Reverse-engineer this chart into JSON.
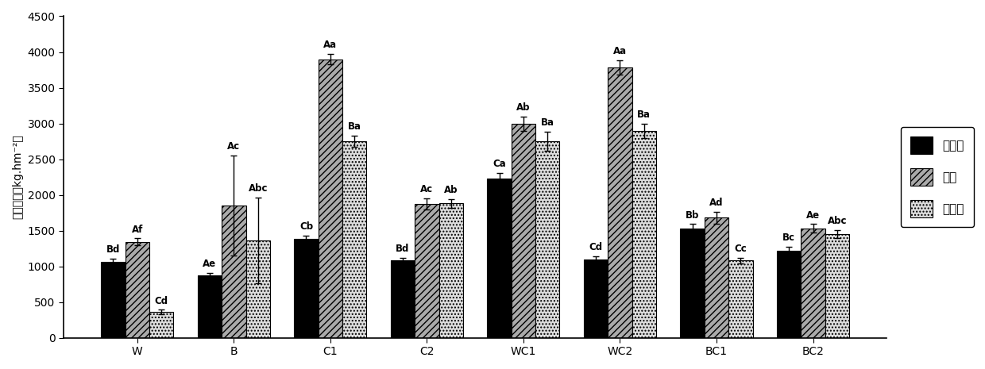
{
  "categories": [
    "W",
    "B",
    "C1",
    "C2",
    "WC1",
    "WC2",
    "BC1",
    "BC2"
  ],
  "series": {
    "不施肥": {
      "values": [
        1060,
        870,
        1380,
        1080,
        2230,
        1100,
        1530,
        1220
      ],
      "errors": [
        50,
        40,
        50,
        40,
        80,
        40,
        60,
        50
      ],
      "labels": [
        "Bd",
        "Ae",
        "Cb",
        "Bd",
        "Ca",
        "Cd",
        "Bb",
        "Bc"
      ],
      "color": "#000000",
      "hatch": ""
    },
    "菌肥": {
      "values": [
        1340,
        1850,
        3900,
        1870,
        3000,
        3780,
        1680,
        1530
      ],
      "errors": [
        50,
        700,
        70,
        80,
        100,
        100,
        80,
        60
      ],
      "labels": [
        "Af",
        "Ac",
        "Aa",
        "Ac",
        "Ab",
        "Aa",
        "Ad",
        "Ae"
      ],
      "color": "#aaaaaa",
      "hatch": "////"
    },
    "水溶肥": {
      "values": [
        360,
        1360,
        2750,
        1880,
        2750,
        2900,
        1080,
        1450
      ],
      "errors": [
        30,
        600,
        80,
        60,
        130,
        100,
        40,
        60
      ],
      "labels": [
        "Cd",
        "Abc",
        "Ba",
        "Ab",
        "Ba",
        "Ba",
        "Cc",
        "Abc"
      ],
      "color": "#dddddd",
      "hatch": "...."
    }
  },
  "ylabel": "干草产量（kg.hm-2）",
  "ylim": [
    0,
    4500
  ],
  "yticks": [
    0,
    500,
    1000,
    1500,
    2000,
    2500,
    3000,
    3500,
    4000,
    4500
  ],
  "bar_width": 0.25,
  "label_fontsize": 8.5,
  "tick_fontsize": 10,
  "legend_fontsize": 11,
  "figsize": [
    12.4,
    4.65
  ],
  "dpi": 100
}
